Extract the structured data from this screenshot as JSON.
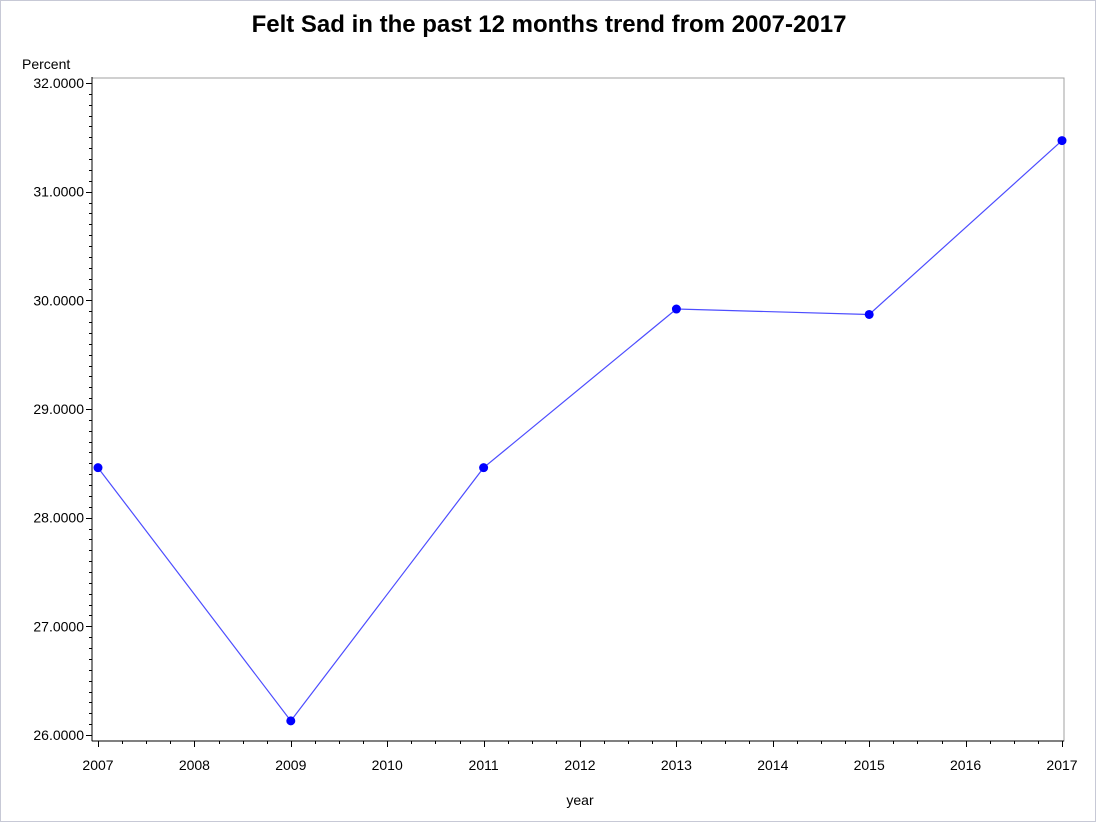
{
  "chart_data": {
    "type": "line",
    "title": "Felt Sad in the past 12 months trend from 2007-2017",
    "xlabel": "year",
    "ylabel": "Percent",
    "xlim": [
      2007,
      2017
    ],
    "ylim": [
      26,
      32
    ],
    "x_ticks": [
      "2007",
      "2008",
      "2009",
      "2010",
      "2011",
      "2012",
      "2013",
      "2014",
      "2015",
      "2016",
      "2017"
    ],
    "y_ticks": [
      "26.0000",
      "27.0000",
      "28.0000",
      "29.0000",
      "30.0000",
      "31.0000",
      "32.0000"
    ],
    "series": [
      {
        "x": [
          2007,
          2009,
          2011,
          2013,
          2015,
          2017
        ],
        "y": [
          28.46,
          26.13,
          28.46,
          29.92,
          29.87,
          31.47
        ]
      }
    ],
    "colors": {
      "line": "#4d4dff",
      "marker": "#0000ff",
      "axis": "#000000",
      "frame": "#a0a0a0"
    },
    "grid": false,
    "legend": "none"
  }
}
